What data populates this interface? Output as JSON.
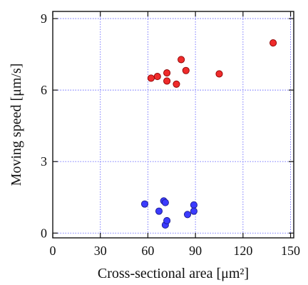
{
  "chart_data": {
    "type": "scatter",
    "title": "",
    "xlabel": "Cross-sectional area  [μm²]",
    "ylabel": "Moving speed [μm/s]",
    "xlim": [
      0,
      152
    ],
    "ylim": [
      -0.2,
      9.3
    ],
    "x_ticks": [
      0,
      30,
      60,
      90,
      120,
      150
    ],
    "y_ticks": [
      0,
      3,
      6,
      9
    ],
    "grid": true,
    "legend": "none",
    "colors": {
      "grid": "#6b6bff",
      "axis": "#111111",
      "red_fill": "#ef2b2b",
      "red_stroke": "#8b0000",
      "blue_fill": "#3b3bff",
      "blue_stroke": "#1a1a8f"
    },
    "series": [
      {
        "points": [
          {
            "x": 62,
            "y": 6.5
          },
          {
            "x": 66,
            "y": 6.57
          },
          {
            "x": 72,
            "y": 6.38
          },
          {
            "x": 72,
            "y": 6.72
          },
          {
            "x": 78,
            "y": 6.25
          },
          {
            "x": 81,
            "y": 7.28
          },
          {
            "x": 84,
            "y": 6.82
          },
          {
            "x": 105,
            "y": 6.68
          },
          {
            "x": 139,
            "y": 7.98
          }
        ],
        "color": "#ef2b2b"
      },
      {
        "points": [
          {
            "x": 58,
            "y": 1.22
          },
          {
            "x": 67,
            "y": 0.92
          },
          {
            "x": 70,
            "y": 1.35
          },
          {
            "x": 71,
            "y": 1.28
          },
          {
            "x": 71,
            "y": 0.34
          },
          {
            "x": 72,
            "y": 0.52
          },
          {
            "x": 85,
            "y": 0.78
          },
          {
            "x": 89,
            "y": 1.18
          },
          {
            "x": 89,
            "y": 0.92
          }
        ],
        "color": "#3b3bff"
      }
    ]
  }
}
